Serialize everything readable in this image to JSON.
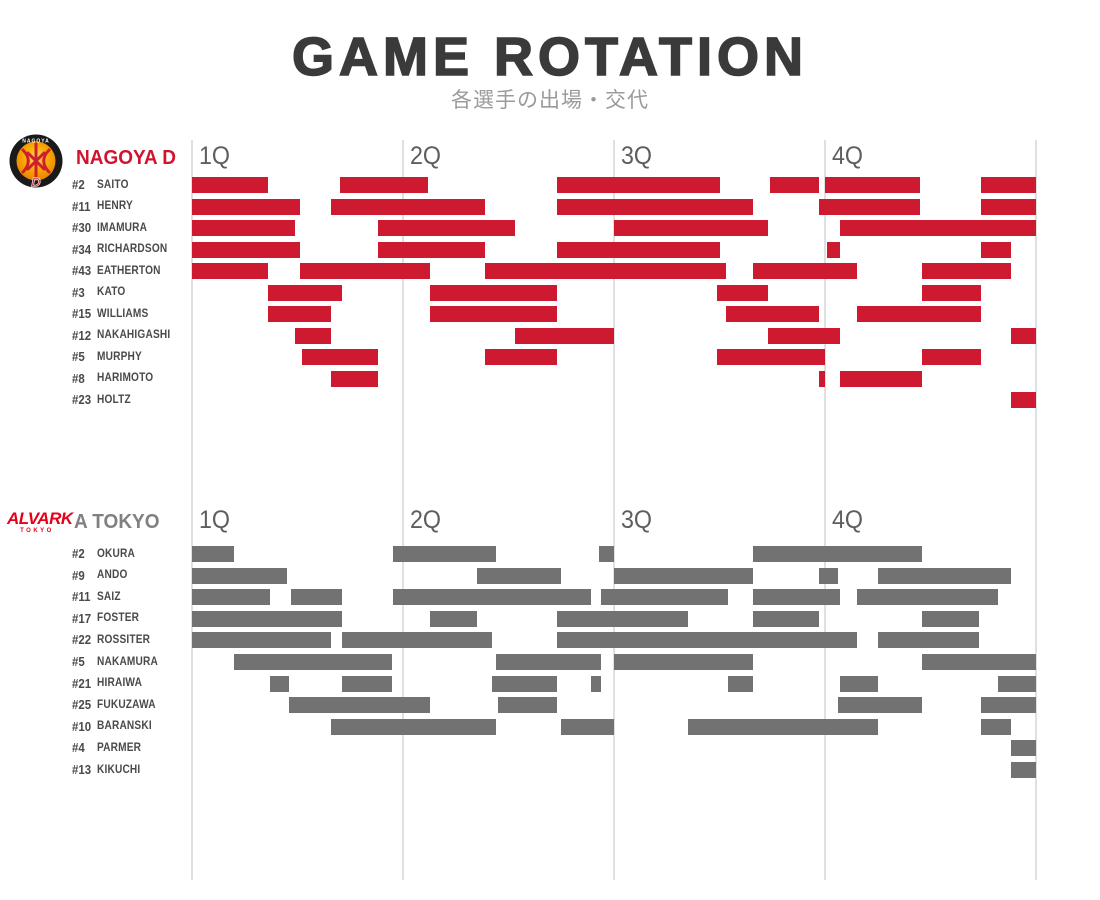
{
  "title": "GAME ROTATION",
  "subtitle": "各選手の出場・交代",
  "quarters": [
    "1Q",
    "2Q",
    "3Q",
    "4Q"
  ],
  "logos": {
    "nagoya_arc_text": "NAGOYA",
    "nagoya_d_letter": "D",
    "alvark_word": "ALVARK",
    "alvark_sub": "TOKYO"
  },
  "colors": {
    "title_text": "#3a3a3a",
    "subtitle_text": "#9b9b9b",
    "player_label_text": "#4a4a4a",
    "quarter_label_text": "#5e5e5e",
    "gridline": "#e0e0e0",
    "nagoya_bar": "#cd1a31",
    "nagoya_team_name": "#d0142f",
    "tokyo_bar": "#727272",
    "tokyo_team_name": "#808080",
    "alvark_logo_red": "#e60019"
  },
  "chart_data": {
    "type": "bar",
    "subtype": "gantt-rotation-timeline",
    "title": "GAME ROTATION",
    "x_axis": {
      "unit": "minutes",
      "range": [
        0,
        40
      ],
      "quarters": [
        "1Q",
        "2Q",
        "3Q",
        "4Q"
      ],
      "quarter_length_min": 10,
      "gridlines_at_min": [
        0,
        10,
        20,
        30,
        40
      ]
    },
    "teams": [
      {
        "name": "NAGOYA D",
        "logo": "nagoya-diamond-dolphins-crest",
        "color": "#cd1a31",
        "players": [
          {
            "number": "#2",
            "name": "SAITO",
            "stints": [
              [
                0,
                3.6
              ],
              [
                7,
                11.2
              ],
              [
                17.3,
                25
              ],
              [
                27.4,
                29.7
              ],
              [
                30,
                34.5
              ],
              [
                37.4,
                40
              ]
            ]
          },
          {
            "number": "#11",
            "name": "HENRY",
            "stints": [
              [
                0,
                5.1
              ],
              [
                6.6,
                13.9
              ],
              [
                17.3,
                26.6
              ],
              [
                29.7,
                34.5
              ],
              [
                37.4,
                40
              ]
            ]
          },
          {
            "number": "#30",
            "name": "IMAMURA",
            "stints": [
              [
                0,
                4.9
              ],
              [
                8.8,
                15.3
              ],
              [
                20,
                27.3
              ],
              [
                30.7,
                40
              ]
            ]
          },
          {
            "number": "#34",
            "name": "RICHARDSON",
            "stints": [
              [
                0,
                5.1
              ],
              [
                8.8,
                13.9
              ],
              [
                17.3,
                25
              ],
              [
                30.1,
                30.7
              ],
              [
                37.4,
                38.8
              ]
            ]
          },
          {
            "number": "#43",
            "name": "EATHERTON",
            "stints": [
              [
                0,
                3.6
              ],
              [
                5.1,
                11.3
              ],
              [
                13.9,
                25.3
              ],
              [
                26.6,
                31.5
              ],
              [
                34.6,
                38.8
              ]
            ]
          },
          {
            "number": "#3",
            "name": "KATO",
            "stints": [
              [
                3.6,
                7.1
              ],
              [
                11.3,
                17.3
              ],
              [
                24.9,
                27.3
              ],
              [
                34.6,
                37.4
              ]
            ]
          },
          {
            "number": "#15",
            "name": "WILLIAMS",
            "stints": [
              [
                3.6,
                6.6
              ],
              [
                11.3,
                17.3
              ],
              [
                25.3,
                29.7
              ],
              [
                31.5,
                37.4
              ]
            ]
          },
          {
            "number": "#12",
            "name": "NAKAHIGASHI",
            "stints": [
              [
                4.9,
                6.6
              ],
              [
                15.3,
                20
              ],
              [
                27.3,
                30.7
              ],
              [
                38.8,
                40
              ]
            ]
          },
          {
            "number": "#5",
            "name": "MURPHY",
            "stints": [
              [
                5.2,
                8.8
              ],
              [
                13.9,
                17.3
              ],
              [
                24.9,
                30
              ],
              [
                34.6,
                37.4
              ]
            ]
          },
          {
            "number": "#8",
            "name": "HARIMOTO",
            "stints": [
              [
                6.6,
                8.8
              ],
              [
                29.7,
                30
              ],
              [
                30.7,
                34.6
              ]
            ]
          },
          {
            "number": "#23",
            "name": "HOLTZ",
            "stints": [
              [
                38.8,
                40
              ]
            ]
          }
        ]
      },
      {
        "name": "A TOKYO",
        "logo": "alvark-tokyo-wordmark",
        "color": "#727272",
        "players": [
          {
            "number": "#2",
            "name": "OKURA",
            "stints": [
              [
                0,
                2
              ],
              [
                9.5,
                14.4
              ],
              [
                19.3,
                20
              ],
              [
                26.6,
                34.6
              ]
            ]
          },
          {
            "number": "#9",
            "name": "ANDO",
            "stints": [
              [
                0,
                4.5
              ],
              [
                13.5,
                17.5
              ],
              [
                20,
                26.6
              ],
              [
                29.7,
                30.6
              ],
              [
                32.5,
                38.8
              ]
            ]
          },
          {
            "number": "#11",
            "name": "SAIZ",
            "stints": [
              [
                0,
                3.7
              ],
              [
                4.7,
                7.1
              ],
              [
                9.5,
                18.9
              ],
              [
                19.4,
                25.4
              ],
              [
                26.6,
                30.7
              ],
              [
                31.5,
                38.2
              ]
            ]
          },
          {
            "number": "#17",
            "name": "FOSTER",
            "stints": [
              [
                0,
                7.1
              ],
              [
                11.3,
                13.5
              ],
              [
                17.3,
                23.5
              ],
              [
                26.6,
                29.7
              ],
              [
                34.6,
                37.3
              ]
            ]
          },
          {
            "number": "#22",
            "name": "ROSSITER",
            "stints": [
              [
                0,
                6.6
              ],
              [
                7.1,
                14.2
              ],
              [
                17.3,
                31.5
              ],
              [
                32.5,
                37.3
              ]
            ]
          },
          {
            "number": "#5",
            "name": "NAKAMURA",
            "stints": [
              [
                2,
                9.5
              ],
              [
                14.4,
                19.4
              ],
              [
                20,
                26.6
              ],
              [
                34.6,
                40
              ]
            ]
          },
          {
            "number": "#21",
            "name": "HIRAIWA",
            "stints": [
              [
                3.7,
                4.6
              ],
              [
                7.1,
                9.5
              ],
              [
                14.2,
                17.3
              ],
              [
                18.9,
                19.4
              ],
              [
                25.4,
                26.6
              ],
              [
                30.7,
                32.5
              ],
              [
                38.2,
                40
              ]
            ]
          },
          {
            "number": "#25",
            "name": "FUKUZAWA",
            "stints": [
              [
                4.6,
                11.3
              ],
              [
                14.5,
                17.3
              ],
              [
                30.6,
                34.6
              ],
              [
                37.4,
                40
              ]
            ]
          },
          {
            "number": "#10",
            "name": "BARANSKI",
            "stints": [
              [
                6.6,
                14.4
              ],
              [
                17.5,
                20
              ],
              [
                23.5,
                32.5
              ],
              [
                37.4,
                38.8
              ]
            ]
          },
          {
            "number": "#4",
            "name": "PARMER",
            "stints": [
              [
                38.8,
                40
              ]
            ]
          },
          {
            "number": "#13",
            "name": "KIKUCHI",
            "stints": [
              [
                38.8,
                40
              ]
            ]
          }
        ]
      }
    ]
  }
}
